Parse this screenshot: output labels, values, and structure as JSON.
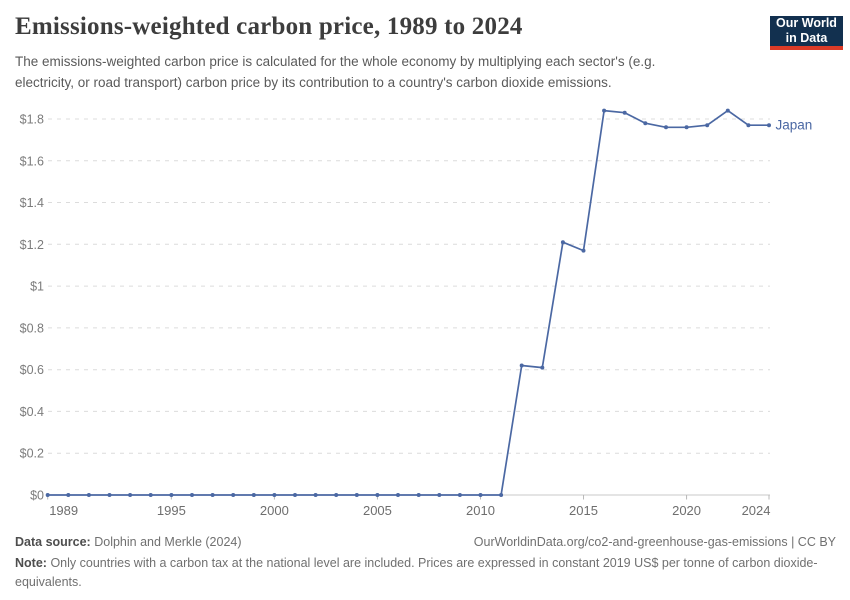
{
  "header": {
    "title": "Emissions-weighted carbon price, 1989 to 2024",
    "subtitle_lines": [
      "The emissions-weighted carbon price is calculated for the whole economy by multiplying each sector's (e.g.",
      "electricity, or road transport) carbon price by its contribution to a country's carbon dioxide emissions."
    ]
  },
  "logo": {
    "line1": "Our World",
    "line2": "in Data",
    "bg_color": "#12304f",
    "accent_color": "#dc3b27"
  },
  "footer": {
    "datasource_label": "Data source:",
    "datasource_value": "Dolphin and Merkle (2024)",
    "attribution": "OurWorldinData.org/co2-and-greenhouse-gas-emissions | CC BY",
    "note_label": "Note:",
    "note_text": "Only countries with a carbon tax at the national level are included. Prices are expressed in constant 2019 US$ per tonne of carbon dioxide-equivalents."
  },
  "chart_data": {
    "type": "line",
    "title": "Emissions-weighted carbon price, 1989 to 2024",
    "xlabel": "",
    "ylabel": "",
    "x": [
      1989,
      1990,
      1991,
      1992,
      1993,
      1994,
      1995,
      1996,
      1997,
      1998,
      1999,
      2000,
      2001,
      2002,
      2003,
      2004,
      2005,
      2006,
      2007,
      2008,
      2009,
      2010,
      2011,
      2012,
      2013,
      2014,
      2015,
      2016,
      2017,
      2018,
      2019,
      2020,
      2021,
      2022,
      2023,
      2024
    ],
    "series": [
      {
        "name": "Japan",
        "color": "#4b68a3",
        "values": [
          0,
          0,
          0,
          0,
          0,
          0,
          0,
          0,
          0,
          0,
          0,
          0,
          0,
          0,
          0,
          0,
          0,
          0,
          0,
          0,
          0,
          0,
          0,
          0.62,
          0.61,
          1.21,
          1.17,
          1.84,
          1.83,
          1.78,
          1.76,
          1.76,
          1.77,
          1.84,
          1.77,
          1.77
        ]
      }
    ],
    "xlim": [
      1989,
      2024
    ],
    "ylim": [
      0,
      1.9
    ],
    "y_ticks": [
      {
        "value": 0,
        "label": "$0"
      },
      {
        "value": 0.2,
        "label": "$0.2"
      },
      {
        "value": 0.4,
        "label": "$0.4"
      },
      {
        "value": 0.6,
        "label": "$0.6"
      },
      {
        "value": 0.8,
        "label": "$0.8"
      },
      {
        "value": 1,
        "label": "$1"
      },
      {
        "value": 1.2,
        "label": "$1.2"
      },
      {
        "value": 1.4,
        "label": "$1.4"
      },
      {
        "value": 1.6,
        "label": "$1.6"
      },
      {
        "value": 1.8,
        "label": "$1.8"
      }
    ],
    "x_ticks": [
      1989,
      1995,
      2000,
      2005,
      2010,
      2015,
      2020,
      2024
    ],
    "grid": "horizontal-dashed",
    "legend": "end-of-line-label",
    "marker": "circle"
  }
}
